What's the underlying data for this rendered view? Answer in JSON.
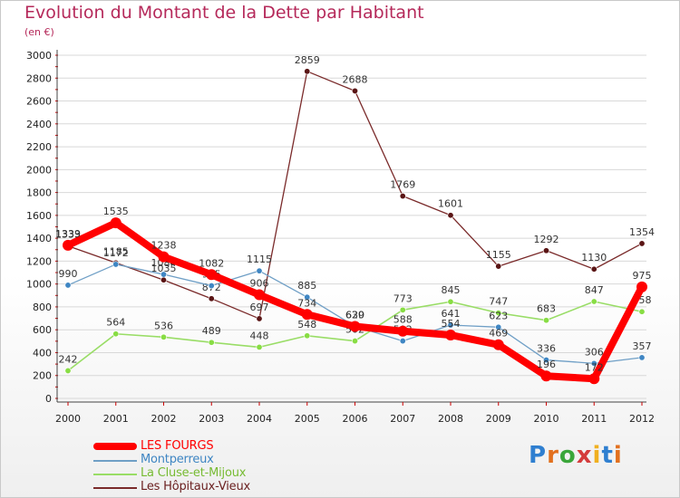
{
  "header": {
    "title": "Evolution du Montant de la Dette par Habitant",
    "unit": "(en €)"
  },
  "logo": {
    "text": "Proxiti"
  },
  "colors": {
    "title": "#b5295a",
    "grid": "#d8d8d8",
    "axis_ticks": "#cc0000"
  },
  "chart_data": {
    "type": "line",
    "title": "Evolution du Montant de la Dette par Habitant",
    "subtitle": "(en €)",
    "xlabel": "",
    "ylabel": "",
    "x": [
      "2000",
      "2001",
      "2002",
      "2003",
      "2004",
      "2005",
      "2006",
      "2007",
      "2008",
      "2009",
      "2010",
      "2011",
      "2012"
    ],
    "ylim": [
      0,
      3000
    ],
    "yticks": [
      0,
      200,
      400,
      600,
      800,
      1000,
      1200,
      1400,
      1600,
      1800,
      2000,
      2200,
      2400,
      2600,
      2800,
      3000
    ],
    "grid": true,
    "legend_position": "bottom-left",
    "series": [
      {
        "name": "Les Hôpitaux-Vieux",
        "color": "#7a2a2a",
        "marker": "#5a1515",
        "width": 1.3,
        "values": [
          1333,
          1185,
          1035,
          872,
          697,
          2859,
          2688,
          1769,
          1601,
          1155,
          1292,
          1130,
          1354
        ],
        "labels": [
          "1333",
          "1185",
          "1035",
          "872",
          "697",
          "2859",
          "2688",
          "1769",
          "1601",
          "1155",
          "1292",
          "1130",
          "1354"
        ]
      },
      {
        "name": "La Cluse-et-Mijoux",
        "color": "#99dd66",
        "marker": "#88dd44",
        "width": 1.6,
        "values": [
          242,
          564,
          536,
          489,
          448,
          548,
          502,
          773,
          845,
          747,
          683,
          847,
          758
        ],
        "labels": [
          "242",
          "564",
          "536",
          "489",
          "448",
          "548",
          "502",
          "773",
          "845",
          "747",
          "683",
          "847",
          "758"
        ]
      },
      {
        "name": "Montperreux",
        "color": "#6f9fc6",
        "marker": "#3f86c3",
        "width": 1.3,
        "values": [
          990,
          1172,
          1084,
          985,
          1115,
          885,
          630,
          502,
          641,
          623,
          336,
          306,
          357
        ],
        "labels": [
          "990",
          "1172",
          "1084",
          "985",
          "1115",
          "885",
          "630",
          "502",
          "641",
          "623",
          "336",
          "306",
          "357"
        ]
      },
      {
        "name": "LES FOURGS",
        "color": "#ff0000",
        "marker": "#ff0000",
        "width": 8,
        "values": [
          1339,
          1535,
          1238,
          1082,
          906,
          734,
          629,
          588,
          554,
          469,
          196,
          172,
          975
        ],
        "labels": [
          "1339",
          "1535",
          "1238",
          "1082",
          "906",
          "734",
          "629",
          "588",
          "554",
          "469",
          "196",
          "172",
          "975"
        ]
      }
    ]
  },
  "legend": {
    "items": [
      {
        "label": "LES FOURGS",
        "color": "#ff0000",
        "width": 8
      },
      {
        "label": "Montperreux",
        "color": "#6f9fc6",
        "width": 2
      },
      {
        "label": "La Cluse-et-Mijoux",
        "color": "#99dd66",
        "width": 2
      },
      {
        "label": "Les Hôpitaux-Vieux",
        "color": "#7a2a2a",
        "width": 2
      }
    ]
  }
}
